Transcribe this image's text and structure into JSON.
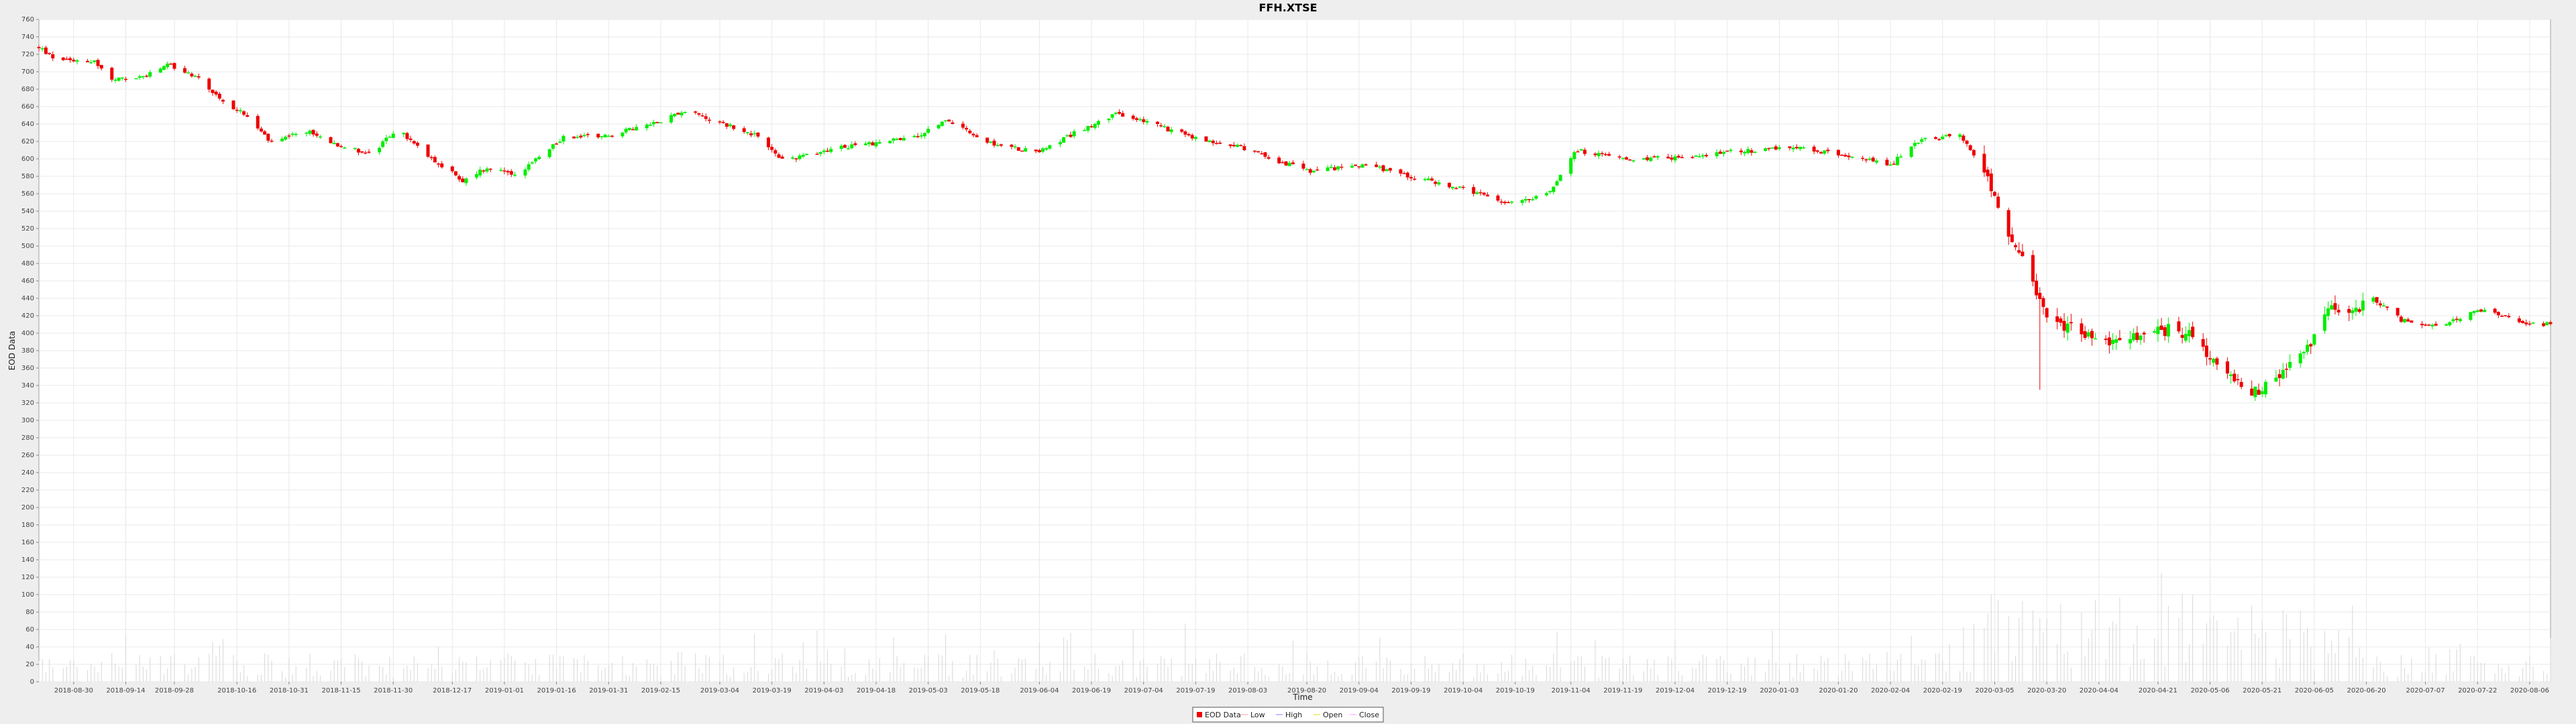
{
  "chart_data": {
    "type": "candlestick",
    "title": "FFH.XTSE",
    "xlabel": "Time",
    "ylabel": "EOD Data",
    "ylim": [
      0,
      760
    ],
    "y_ticks": [
      0,
      20,
      40,
      60,
      80,
      100,
      120,
      140,
      160,
      180,
      200,
      220,
      240,
      260,
      280,
      300,
      320,
      340,
      360,
      380,
      400,
      420,
      440,
      460,
      480,
      500,
      520,
      540,
      560,
      580,
      600,
      620,
      640,
      660,
      680,
      700,
      720,
      740,
      760
    ],
    "x_range": [
      "2018-08-20",
      "2020-08-12"
    ],
    "x_ticks": [
      "2018-08-30",
      "2018-09-14",
      "2018-09-28",
      "2018-10-16",
      "2018-10-31",
      "2018-11-15",
      "2018-11-30",
      "2018-12-17",
      "2019-01-01",
      "2019-01-16",
      "2019-01-31",
      "2019-02-15",
      "2019-03-04",
      "2019-03-19",
      "2019-04-03",
      "2019-04-18",
      "2019-05-03",
      "2019-05-18",
      "2019-06-04",
      "2019-06-19",
      "2019-07-04",
      "2019-07-19",
      "2019-08-03",
      "2019-08-20",
      "2019-09-04",
      "2019-09-19",
      "2019-10-04",
      "2019-10-19",
      "2019-11-04",
      "2019-11-19",
      "2019-12-04",
      "2019-12-19",
      "2020-01-03",
      "2020-01-20",
      "2020-02-04",
      "2020-02-19",
      "2020-03-05",
      "2020-03-20",
      "2020-04-04",
      "2020-04-21",
      "2020-05-06",
      "2020-05-21",
      "2020-06-05",
      "2020-06-20",
      "2020-07-07",
      "2020-07-22",
      "2020-08-06"
    ],
    "grid": true,
    "legend_placement": "bottom-center",
    "colors": {
      "up": "#00ee00",
      "down": "#ee0000",
      "volume": "#d8d8d8",
      "grid": "#e8e8e8",
      "plot_bg": "#ffffff"
    },
    "price_keyframes": [
      [
        "2018-08-20",
        728
      ],
      [
        "2018-08-24",
        716
      ],
      [
        "2018-09-05",
        712
      ],
      [
        "2018-09-10",
        690
      ],
      [
        "2018-09-20",
        695
      ],
      [
        "2018-09-26",
        708
      ],
      [
        "2018-10-04",
        695
      ],
      [
        "2018-10-12",
        665
      ],
      [
        "2018-10-18",
        652
      ],
      [
        "2018-10-26",
        618
      ],
      [
        "2018-11-05",
        632
      ],
      [
        "2018-11-15",
        615
      ],
      [
        "2018-11-24",
        605
      ],
      [
        "2018-12-01",
        635
      ],
      [
        "2018-12-08",
        610
      ],
      [
        "2018-12-20",
        575
      ],
      [
        "2018-12-27",
        590
      ],
      [
        "2019-01-05",
        582
      ],
      [
        "2019-01-18",
        625
      ],
      [
        "2019-02-01",
        628
      ],
      [
        "2019-02-12",
        640
      ],
      [
        "2019-02-22",
        655
      ],
      [
        "2019-03-05",
        640
      ],
      [
        "2019-03-14",
        628
      ],
      [
        "2019-03-22",
        598
      ],
      [
        "2019-04-05",
        612
      ],
      [
        "2019-04-17",
        618
      ],
      [
        "2019-04-30",
        625
      ],
      [
        "2019-05-08",
        645
      ],
      [
        "2019-05-20",
        618
      ],
      [
        "2019-06-03",
        608
      ],
      [
        "2019-06-17",
        635
      ],
      [
        "2019-06-26",
        652
      ],
      [
        "2019-07-05",
        642
      ],
      [
        "2019-07-20",
        622
      ],
      [
        "2019-08-01",
        614
      ],
      [
        "2019-08-10",
        600
      ],
      [
        "2019-08-21",
        585
      ],
      [
        "2019-09-05",
        594
      ],
      [
        "2019-09-19",
        580
      ],
      [
        "2019-10-04",
        565
      ],
      [
        "2019-10-17",
        548
      ],
      [
        "2019-10-29",
        562
      ],
      [
        "2019-11-05",
        610
      ],
      [
        "2019-11-20",
        600
      ],
      [
        "2019-12-06",
        602
      ],
      [
        "2019-12-20",
        608
      ],
      [
        "2020-01-08",
        612
      ],
      [
        "2020-01-22",
        605
      ],
      [
        "2020-02-04",
        592
      ],
      [
        "2020-02-11",
        620
      ],
      [
        "2020-02-24",
        628
      ],
      [
        "2020-03-03",
        575
      ],
      [
        "2020-03-09",
        510
      ],
      [
        "2020-03-15",
        470
      ],
      [
        "2020-03-20",
        420
      ],
      [
        "2020-03-27",
        405
      ],
      [
        "2020-04-06",
        392
      ],
      [
        "2020-04-17",
        398
      ],
      [
        "2020-04-25",
        405
      ],
      [
        "2020-05-01",
        395
      ],
      [
        "2020-05-08",
        362
      ],
      [
        "2020-05-18",
        330
      ],
      [
        "2020-05-26",
        352
      ],
      [
        "2020-06-02",
        375
      ],
      [
        "2020-06-09",
        430
      ],
      [
        "2020-06-15",
        420
      ],
      [
        "2020-06-22",
        440
      ],
      [
        "2020-06-30",
        415
      ],
      [
        "2020-07-10",
        408
      ],
      [
        "2020-07-24",
        428
      ],
      [
        "2020-08-04",
        412
      ],
      [
        "2020-08-12",
        410
      ]
    ],
    "series": [
      {
        "name": "EOD Data"
      },
      {
        "name": "Low"
      },
      {
        "name": "High"
      },
      {
        "name": "Open"
      },
      {
        "name": "Close"
      }
    ]
  }
}
